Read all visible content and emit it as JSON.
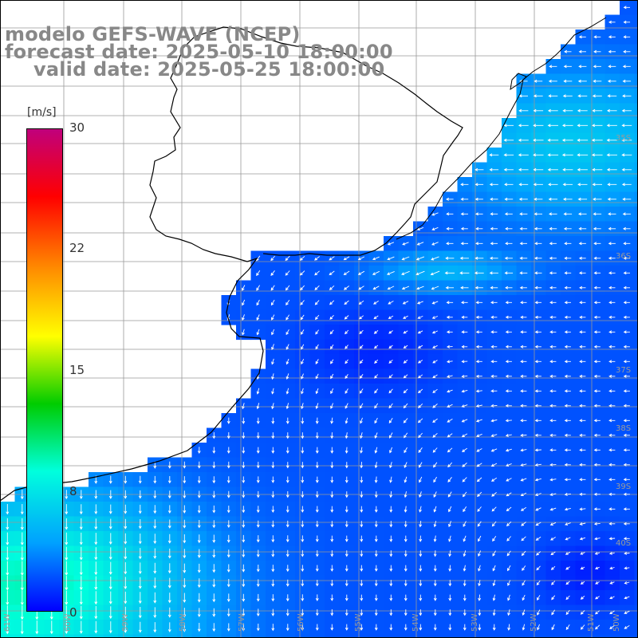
{
  "title": {
    "line1": "modelo GEFS-WAVE (NCEP)",
    "line2": "forecast date: 2025-05-10 18:00:00",
    "line3": "valid date: 2025-05-25 18:00:00"
  },
  "colorbar": {
    "unit": "[m/s]",
    "ticks": [
      "30",
      "22",
      "15",
      "8",
      "0"
    ],
    "colors": [
      "#c0007c",
      "#ff0000",
      "#ff8c00",
      "#ffff00",
      "#00cc00",
      "#00ffdd",
      "#00a0ff",
      "#0000ff"
    ]
  },
  "grid": {
    "lat_labels": [
      "35S",
      "36S",
      "37S",
      "38S",
      "39S",
      "40S"
    ],
    "lon_labels": [
      "61W",
      "60W",
      "59W",
      "58W",
      "57W",
      "56W",
      "55W",
      "54W",
      "53W",
      "52W",
      "51W",
      "50W"
    ]
  },
  "field": {
    "variable": "wind speed and direction",
    "range": [
      0,
      30
    ]
  }
}
